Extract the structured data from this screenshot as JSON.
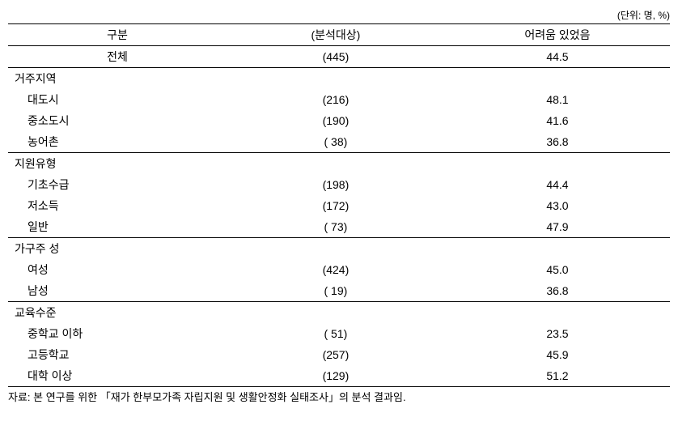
{
  "unit_label": "(단위: 명, %)",
  "columns": {
    "c1": "구분",
    "c2": "(분석대상)",
    "c3": "어려움 있었음"
  },
  "total": {
    "label": "전체",
    "count": "(445)",
    "value": "44.5"
  },
  "sections": [
    {
      "title": "거주지역",
      "rows": [
        {
          "label": "대도시",
          "count": "(216)",
          "value": "48.1"
        },
        {
          "label": "중소도시",
          "count": "(190)",
          "value": "41.6"
        },
        {
          "label": "농어촌",
          "count": "( 38)",
          "value": "36.8"
        }
      ]
    },
    {
      "title": "지원유형",
      "rows": [
        {
          "label": "기초수급",
          "count": "(198)",
          "value": "44.4"
        },
        {
          "label": "저소득",
          "count": "(172)",
          "value": "43.0"
        },
        {
          "label": "일반",
          "count": "( 73)",
          "value": "47.9"
        }
      ]
    },
    {
      "title": "가구주 성",
      "rows": [
        {
          "label": "여성",
          "count": "(424)",
          "value": "45.0"
        },
        {
          "label": "남성",
          "count": "( 19)",
          "value": "36.8"
        }
      ]
    },
    {
      "title": "교육수준",
      "rows": [
        {
          "label": "중학교 이하",
          "count": "( 51)",
          "value": "23.5"
        },
        {
          "label": "고등학교",
          "count": "(257)",
          "value": "45.9"
        },
        {
          "label": "대학 이상",
          "count": "(129)",
          "value": "51.2"
        }
      ]
    }
  ],
  "footnote": "자료: 본 연구를 위한 「재가 한부모가족 자립지원 및 생활안정화 실태조사」의 분석 결과임."
}
